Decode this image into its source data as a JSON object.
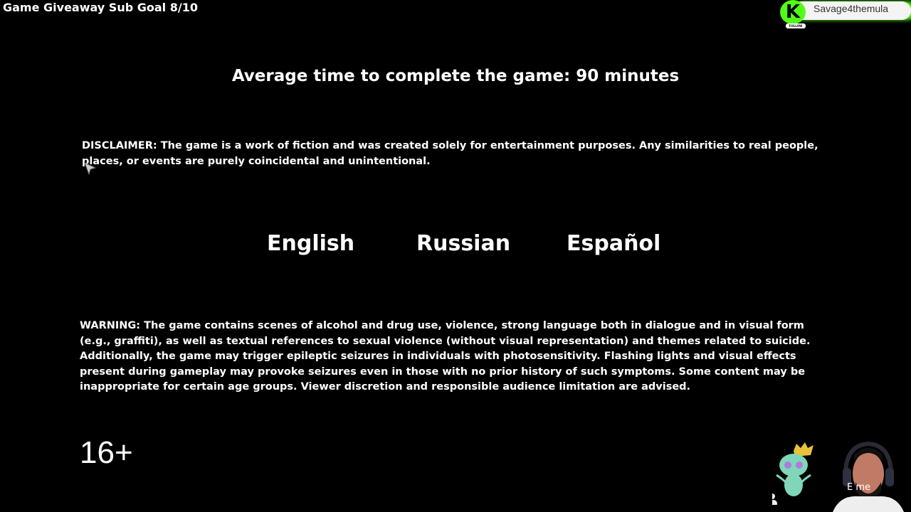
{
  "overlay": {
    "sub_goal": "Game Giveaway Sub Goal 8/10",
    "kick": {
      "logo": "K",
      "username": "Savage4themula",
      "follow_label": "FOLLOW",
      "brand_color": "#53fc18"
    },
    "webcam_text": "E      me"
  },
  "main": {
    "title": "Average time to complete the game: 90 minutes",
    "disclaimer": "DISCLAIMER: The game is a work of fiction and was created solely for entertainment purposes. Any similarities to real people, places, or events are purely coincidental and unintentional.",
    "languages": [
      {
        "label": "English"
      },
      {
        "label": "Russian"
      },
      {
        "label": "Español"
      }
    ],
    "warning": "WARNING: The game contains scenes of alcohol and drug use, violence, strong language both in dialogue and in visual form (e.g., graffiti), as well as textual references to sexual violence (without visual representation) and themes related to suicide. Additionally, the game may trigger epileptic seizures in individuals with photosensitivity. Flashing lights and visual effects present during gameplay may provoke seizures even in those with no prior history of such symptoms. Some content may be inappropriate for certain age groups. Viewer discretion and responsible audience limitation are advised.",
    "age_rating": "16+"
  }
}
